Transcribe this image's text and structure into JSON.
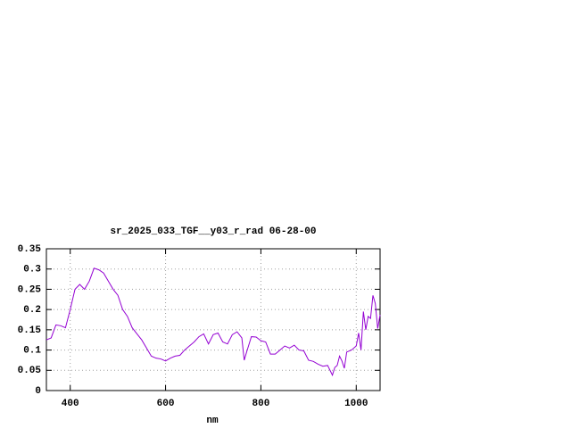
{
  "chart_data": {
    "type": "line",
    "title": "sr_2025_033_TGF__y03_r_rad 06-28-00",
    "x_label": "nm",
    "x": [
      350,
      360,
      370,
      380,
      390,
      400,
      410,
      420,
      430,
      440,
      450,
      460,
      470,
      480,
      490,
      500,
      510,
      520,
      530,
      540,
      550,
      560,
      570,
      580,
      590,
      600,
      610,
      620,
      630,
      640,
      650,
      660,
      670,
      680,
      690,
      700,
      710,
      720,
      730,
      740,
      750,
      760,
      765,
      770,
      780,
      790,
      800,
      810,
      820,
      830,
      840,
      850,
      860,
      870,
      880,
      890,
      900,
      910,
      920,
      930,
      940,
      950,
      955,
      960,
      965,
      970,
      975,
      980,
      990,
      1000,
      1005,
      1010,
      1015,
      1020,
      1025,
      1030,
      1035,
      1040,
      1045,
      1050
    ],
    "series": [
      {
        "color": "#9400d3",
        "values": [
          0.125,
          0.13,
          0.162,
          0.16,
          0.155,
          0.2,
          0.25,
          0.262,
          0.25,
          0.27,
          0.302,
          0.298,
          0.29,
          0.27,
          0.25,
          0.235,
          0.2,
          0.183,
          0.155,
          0.14,
          0.125,
          0.105,
          0.085,
          0.08,
          0.078,
          0.073,
          0.08,
          0.085,
          0.087,
          0.1,
          0.11,
          0.12,
          0.133,
          0.14,
          0.115,
          0.138,
          0.142,
          0.12,
          0.115,
          0.138,
          0.145,
          0.13,
          0.075,
          0.095,
          0.133,
          0.132,
          0.123,
          0.12,
          0.09,
          0.09,
          0.1,
          0.11,
          0.105,
          0.112,
          0.1,
          0.098,
          0.075,
          0.072,
          0.065,
          0.06,
          0.062,
          0.038,
          0.057,
          0.062,
          0.085,
          0.073,
          0.055,
          0.095,
          0.1,
          0.11,
          0.142,
          0.1,
          0.195,
          0.15,
          0.183,
          0.178,
          0.235,
          0.215,
          0.153,
          0.187
        ]
      }
    ],
    "xlim": [
      350,
      1050
    ],
    "xticks": [
      400,
      600,
      800,
      1000
    ],
    "ylim": [
      0,
      0.35
    ],
    "yticks": [
      0,
      0.05,
      0.1,
      0.15,
      0.2,
      0.25,
      0.3,
      0.35
    ],
    "grid": true
  }
}
